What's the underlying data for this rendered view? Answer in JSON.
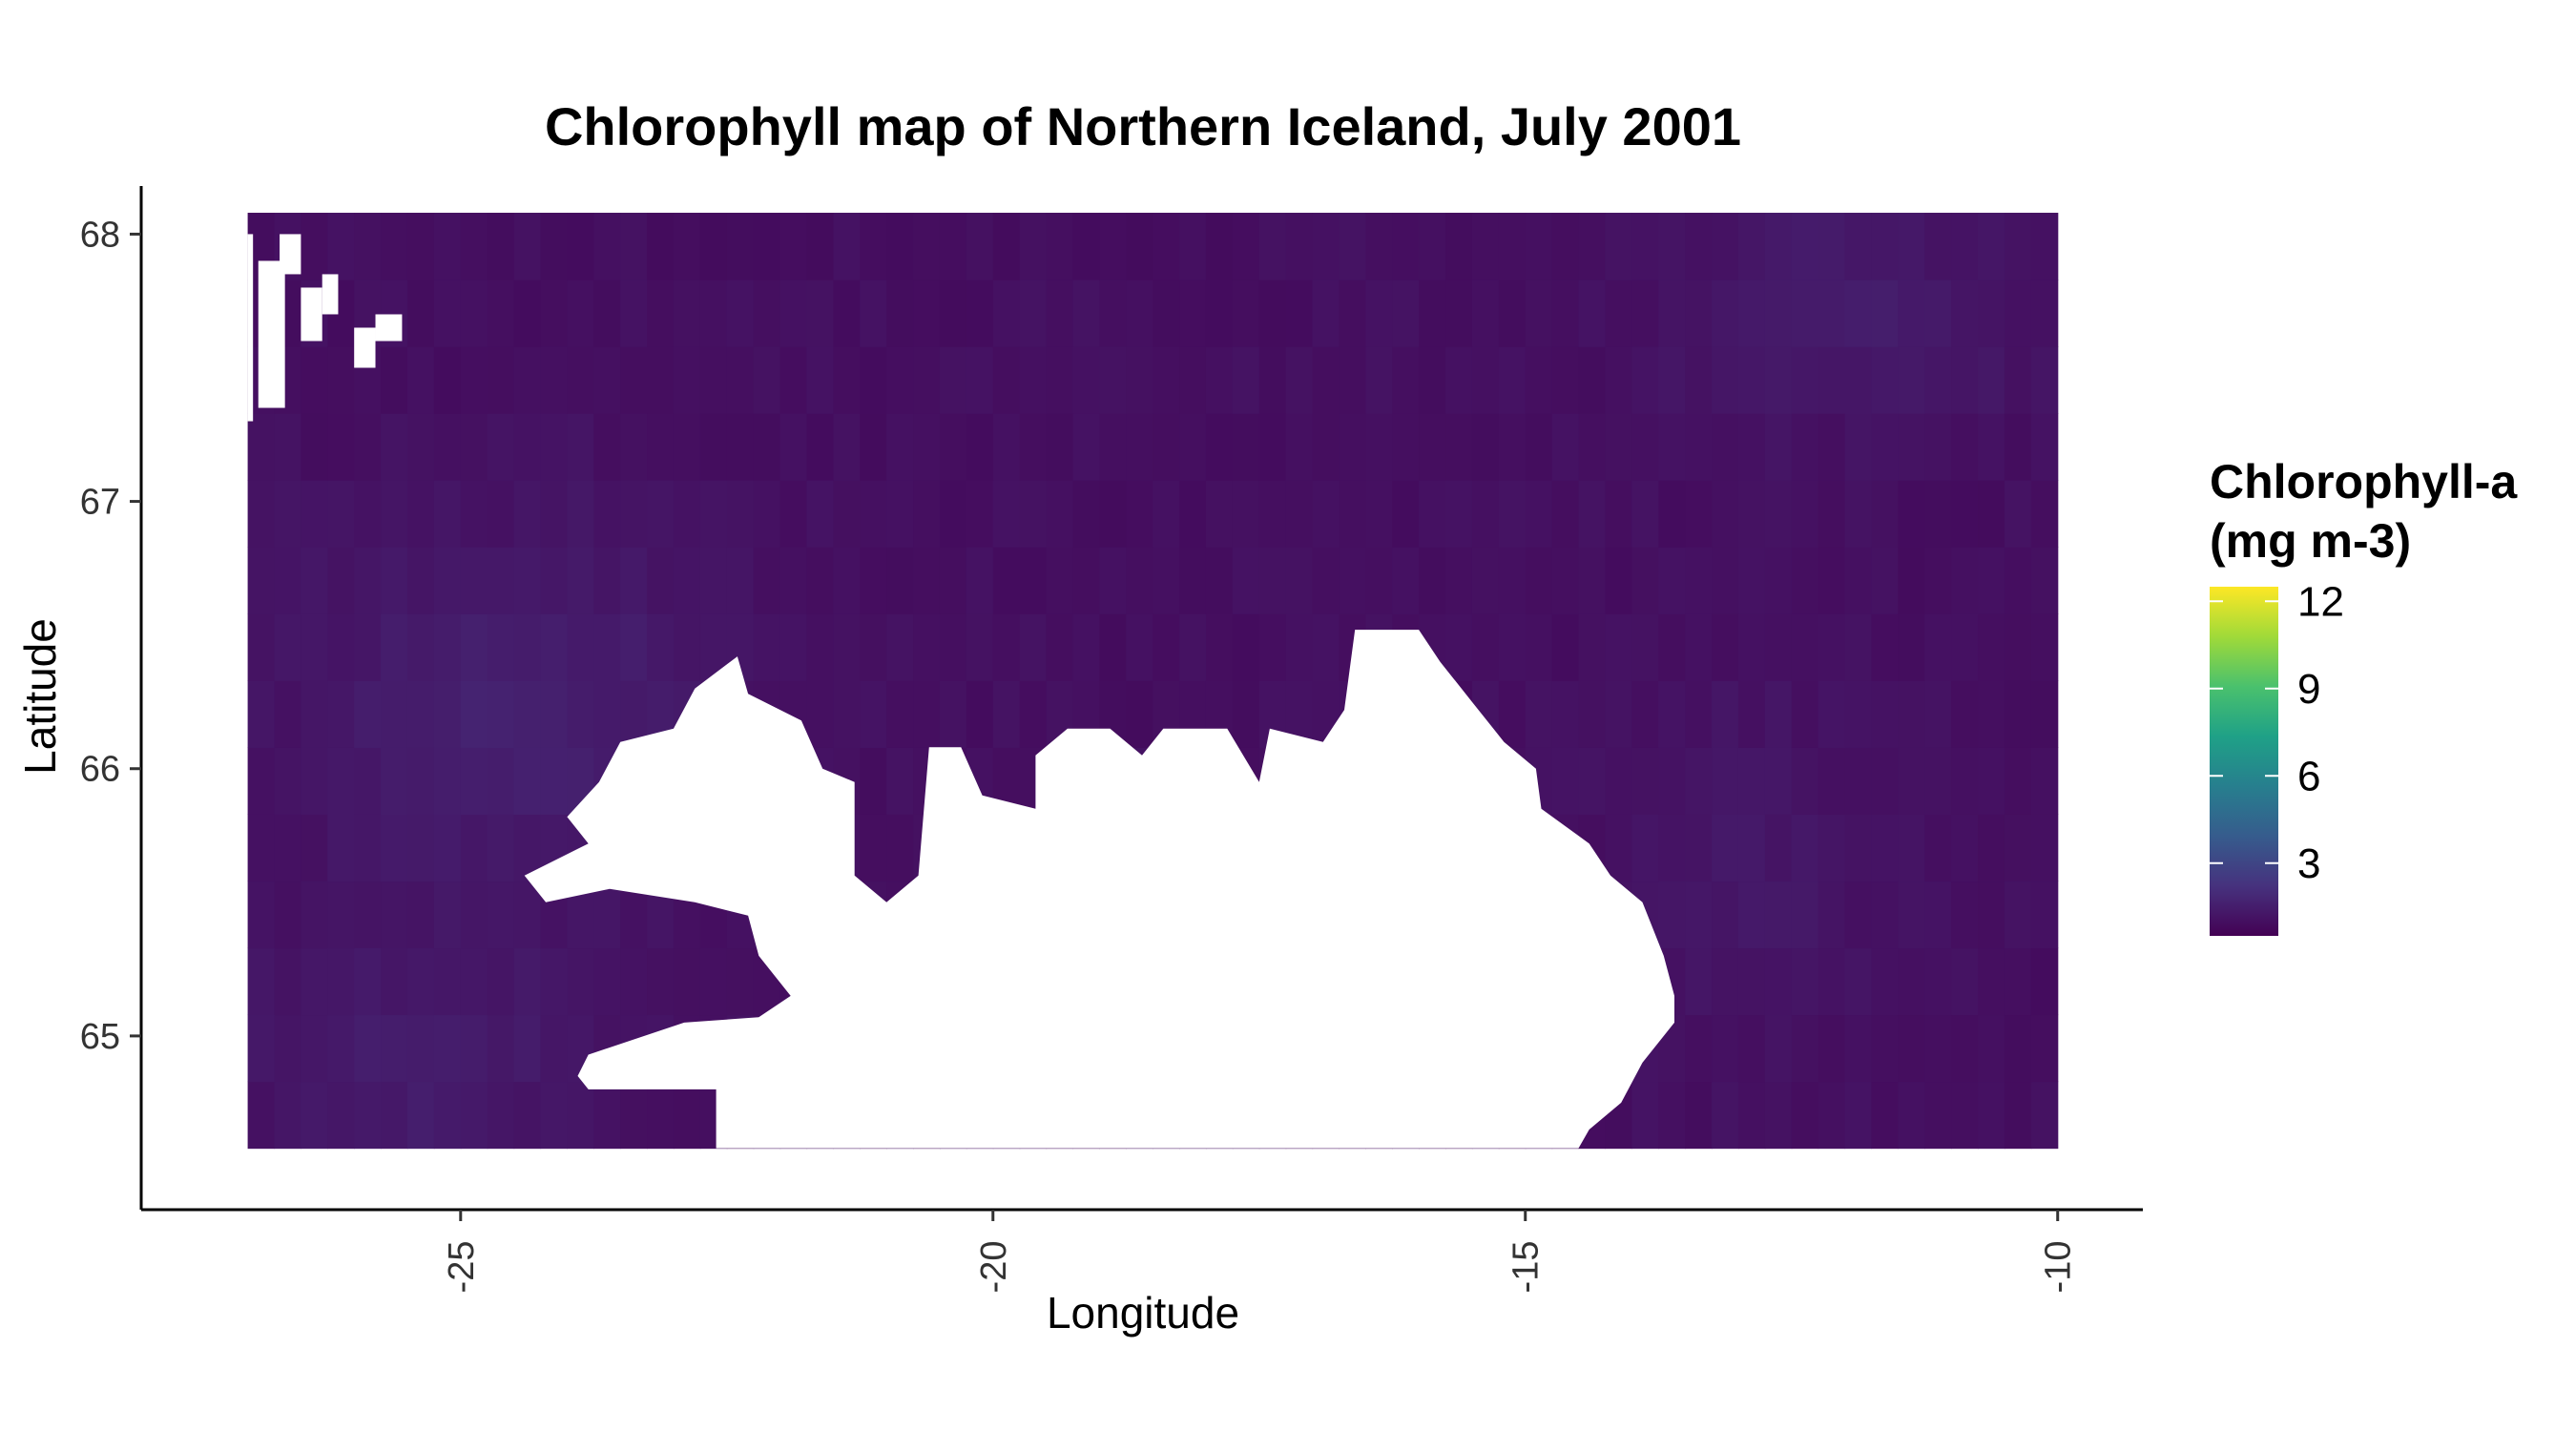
{
  "chart_data": {
    "type": "heatmap",
    "title": "Chlorophyll map of Northern Iceland, July 2001",
    "xlabel": "Longitude",
    "ylabel": "Latitude",
    "x_ticks": [
      -25,
      -20,
      -15,
      -10
    ],
    "y_ticks": [
      65,
      66,
      67,
      68
    ],
    "x_tick_labels": [
      "-25",
      "-20",
      "-15",
      "-10"
    ],
    "y_tick_labels": [
      "65",
      "66",
      "67",
      "68"
    ],
    "xlim": [
      -28.0,
      -9.2
    ],
    "ylim": [
      64.35,
      68.18
    ],
    "data_extent": {
      "lon": [
        -27.0,
        -10.0
      ],
      "lat": [
        64.58,
        68.0
      ]
    },
    "grid_step_deg": 0.25,
    "value_range": [
      0.5,
      12.5
    ],
    "color_scale": "viridis",
    "grid": false,
    "legend": {
      "title_lines": [
        "Chlorophyll-a",
        "(mg m-3)"
      ],
      "ticks": [
        3,
        6,
        9,
        12
      ],
      "tick_labels": [
        "3",
        "6",
        "9",
        "12"
      ],
      "position": "right"
    },
    "colors": {
      "viridis": [
        "#440154",
        "#46327e",
        "#365c8d",
        "#277f8e",
        "#1fa187",
        "#4ac16d",
        "#a0da39",
        "#fde725"
      ],
      "land": "#ffffff",
      "axis": "#000000"
    },
    "land_outline_lonlat": [
      [
        -22.6,
        64.58
      ],
      [
        -22.6,
        64.8
      ],
      [
        -23.8,
        64.8
      ],
      [
        -23.9,
        64.85
      ],
      [
        -23.8,
        64.93
      ],
      [
        -22.9,
        65.05
      ],
      [
        -22.2,
        65.07
      ],
      [
        -21.9,
        65.15
      ],
      [
        -22.2,
        65.3
      ],
      [
        -22.3,
        65.45
      ],
      [
        -22.8,
        65.5
      ],
      [
        -23.6,
        65.55
      ],
      [
        -24.2,
        65.5
      ],
      [
        -24.4,
        65.6
      ],
      [
        -23.8,
        65.72
      ],
      [
        -24.0,
        65.82
      ],
      [
        -23.7,
        65.95
      ],
      [
        -23.5,
        66.1
      ],
      [
        -23.0,
        66.15
      ],
      [
        -22.8,
        66.3
      ],
      [
        -22.4,
        66.42
      ],
      [
        -22.3,
        66.28
      ],
      [
        -21.8,
        66.18
      ],
      [
        -21.6,
        66.0
      ],
      [
        -21.3,
        65.95
      ],
      [
        -21.3,
        65.6
      ],
      [
        -21.0,
        65.5
      ],
      [
        -20.7,
        65.6
      ],
      [
        -20.6,
        66.08
      ],
      [
        -20.3,
        66.08
      ],
      [
        -20.1,
        65.9
      ],
      [
        -19.6,
        65.85
      ],
      [
        -19.6,
        66.05
      ],
      [
        -19.3,
        66.15
      ],
      [
        -18.9,
        66.15
      ],
      [
        -18.6,
        66.05
      ],
      [
        -18.4,
        66.15
      ],
      [
        -17.8,
        66.15
      ],
      [
        -17.5,
        65.95
      ],
      [
        -17.4,
        66.15
      ],
      [
        -16.9,
        66.1
      ],
      [
        -16.7,
        66.22
      ],
      [
        -16.6,
        66.52
      ],
      [
        -16.0,
        66.52
      ],
      [
        -15.8,
        66.4
      ],
      [
        -15.5,
        66.25
      ],
      [
        -15.2,
        66.1
      ],
      [
        -14.9,
        66.0
      ],
      [
        -14.85,
        65.85
      ],
      [
        -14.4,
        65.72
      ],
      [
        -14.2,
        65.6
      ],
      [
        -13.9,
        65.5
      ],
      [
        -13.7,
        65.3
      ],
      [
        -13.6,
        65.15
      ],
      [
        -13.6,
        65.05
      ],
      [
        -13.9,
        64.9
      ],
      [
        -14.1,
        64.75
      ],
      [
        -14.4,
        64.65
      ],
      [
        -14.5,
        64.58
      ]
    ],
    "lake_cells_lonlat": [
      [
        -23.9,
        64.85
      ],
      [
        -22.3,
        65.2
      ]
    ]
  }
}
